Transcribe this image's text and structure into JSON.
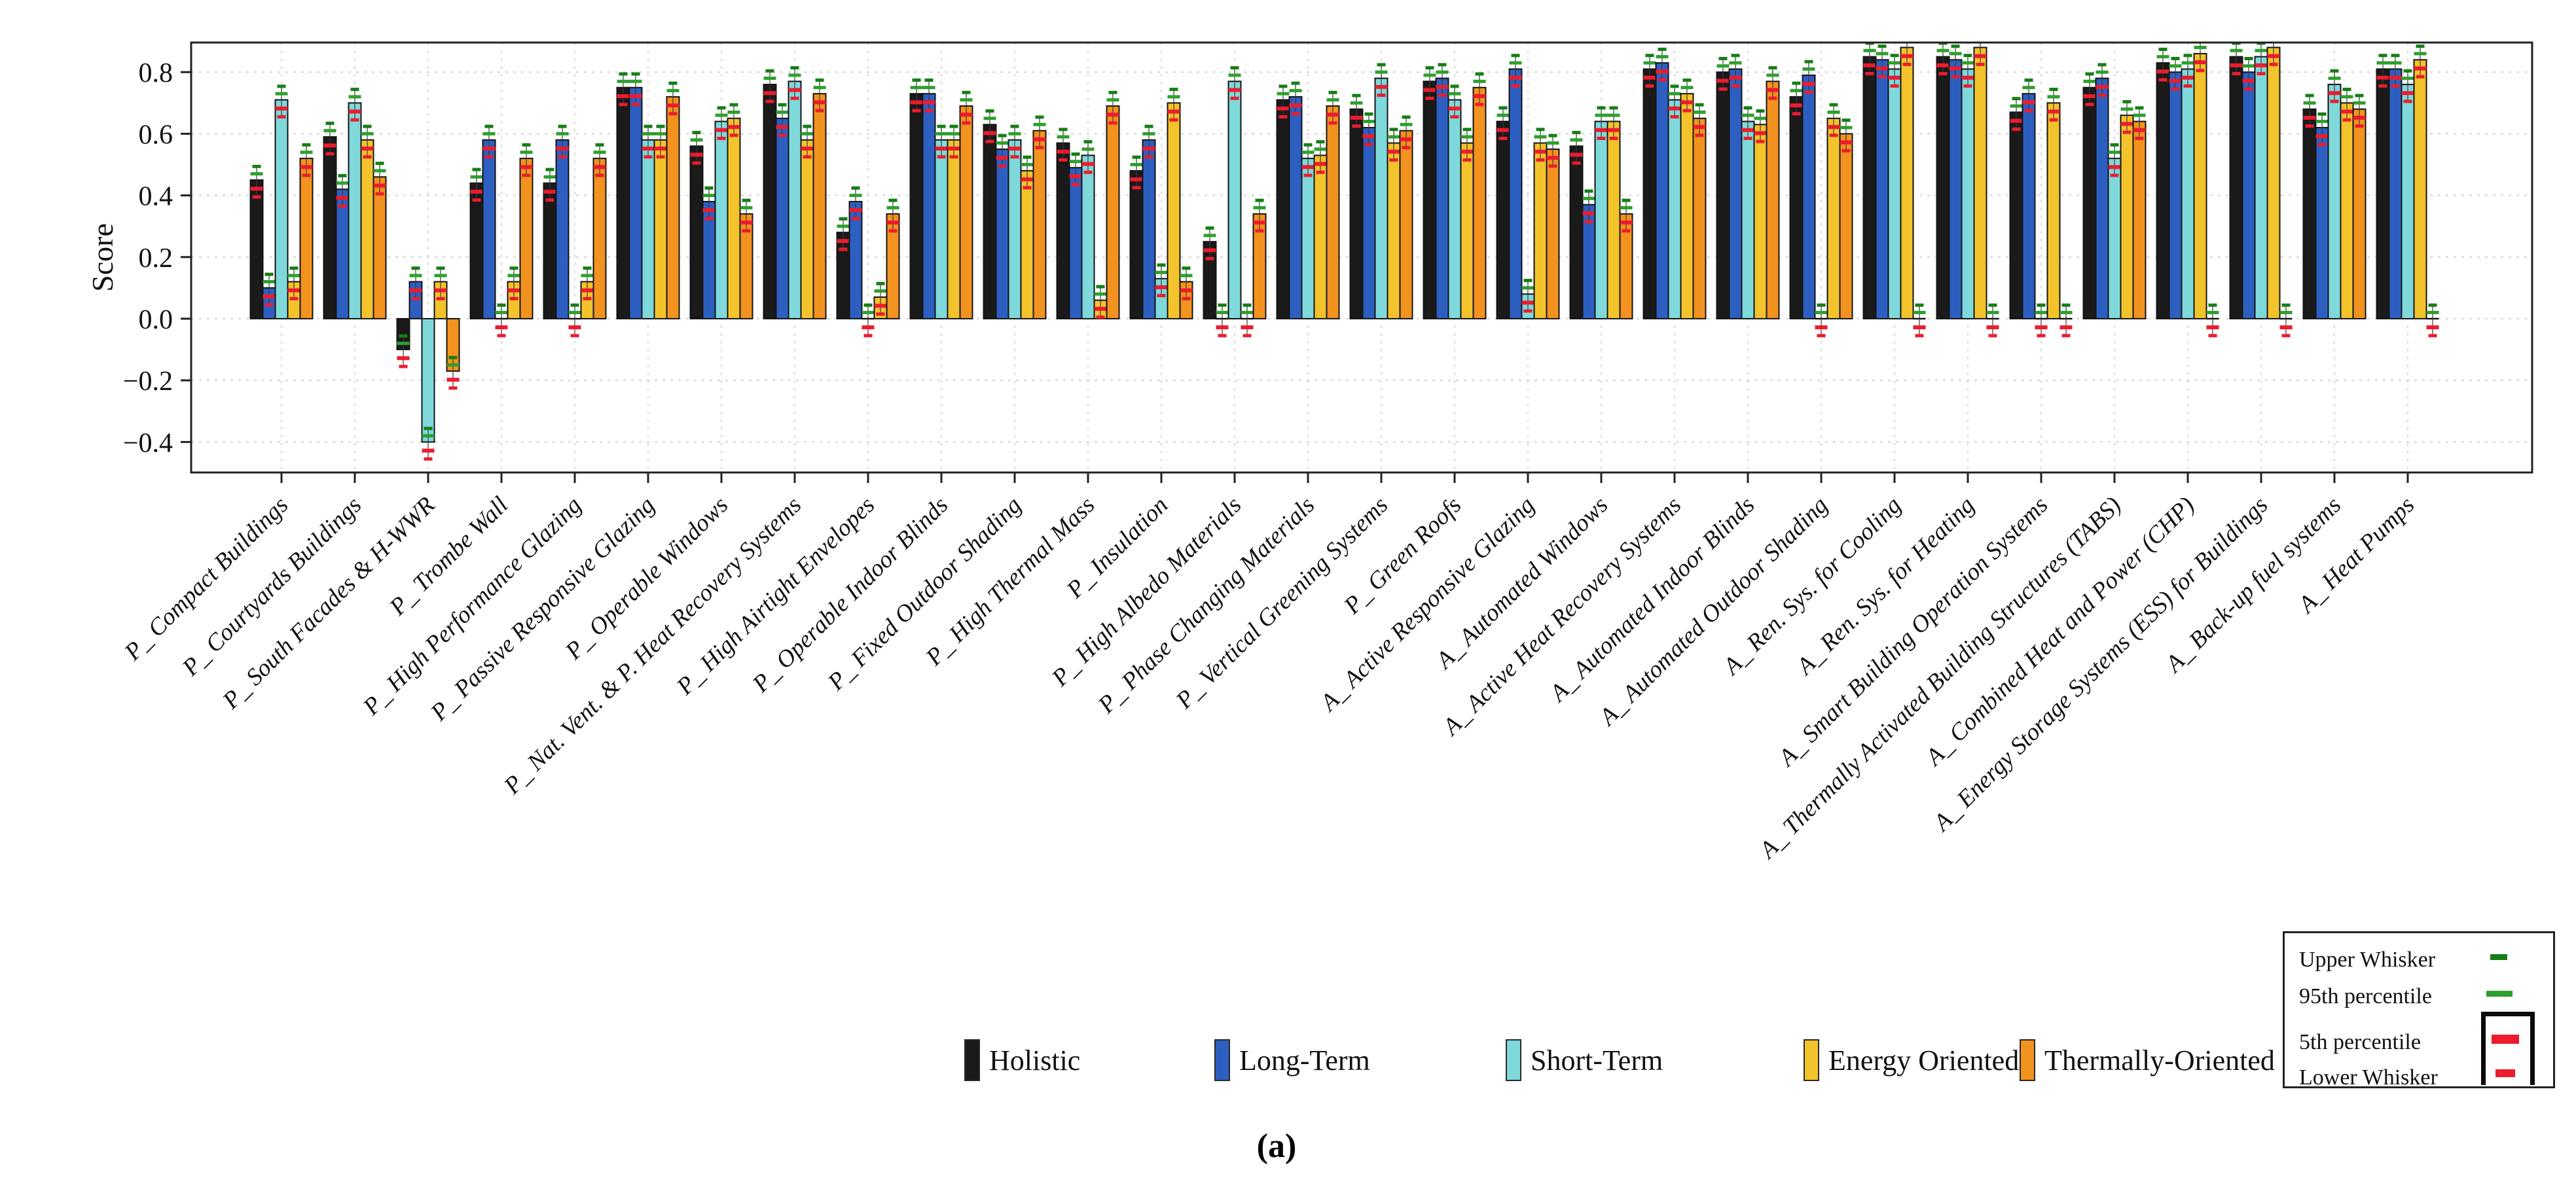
{
  "figure": {
    "caption": "(a)",
    "ylabel": "Score",
    "background": "#ffffff"
  },
  "chart_data": {
    "type": "bar",
    "title": "",
    "xlabel": "",
    "ylabel": "Score",
    "ylim": [
      -0.5,
      0.9
    ],
    "yticks": [
      -0.4,
      -0.2,
      0.0,
      0.2,
      0.4,
      0.6,
      0.8
    ],
    "ytick_labels": [
      "−0.4",
      "−0.2",
      "0.0",
      "0.2",
      "0.4",
      "0.6",
      "0.8"
    ],
    "grid": "dashed",
    "legend_position": "bottom",
    "categories": [
      "P_ Compact Buildings",
      "P_ Courtyards Buildings",
      "P_ South Facades & H-WWR",
      "P_ Trombe Wall",
      "P_ High Performance Glazing",
      "P_ Passive Responsive Glazing",
      "P_ Operable Windows",
      "P_ Nat. Vent. & P. Heat Recovery Systems",
      "P_ High Airtight Envelopes",
      "P_ Operable Indoor Blinds",
      "P_ Fixed Outdoor Shading",
      "P_ High Thermal Mass",
      "P_ Insulation",
      "P_ High Albedo Materials",
      "P_ Phase Changing Materials",
      "P_ Vertical Greening Systems",
      "P_ Green Roofs",
      "A_ Active Responsive Glazing",
      "A_ Automated Windows",
      "A_ Active Heat Recovery Systems",
      "A_ Automated Indoor Blinds",
      "A_ Automated Outdoor Shading",
      "A_ Ren. Sys. for Cooling",
      "A_ Ren. Sys. for Heating",
      "A_ Smart Building Operation Systems",
      "A_ Thermally Activated Building Structures (TABS)",
      "A_ Combined Heat and Power (CHP)",
      "A_ Energy Storage Systems (ESS) for Buildings",
      "A_ Back-up fuel systems",
      "A_ Heat Pumps"
    ],
    "series": [
      {
        "name": "Holistic",
        "color": "#1a1a1a",
        "values": [
          0.45,
          0.59,
          -0.1,
          0.44,
          0.44,
          0.75,
          0.56,
          0.76,
          0.28,
          0.73,
          0.63,
          0.57,
          0.48,
          0.25,
          0.71,
          0.68,
          0.77,
          0.64,
          0.56,
          0.81,
          0.8,
          0.72,
          0.85,
          0.85,
          0.67,
          0.75,
          0.83,
          0.85,
          0.68,
          0.81
        ]
      },
      {
        "name": "Long-Term",
        "color": "#2d5fc1",
        "values": [
          0.1,
          0.42,
          0.12,
          0.58,
          0.58,
          0.75,
          0.38,
          0.65,
          0.38,
          0.73,
          0.55,
          0.49,
          0.58,
          0.0,
          0.72,
          0.62,
          0.78,
          0.81,
          0.37,
          0.83,
          0.81,
          0.79,
          0.84,
          0.84,
          0.73,
          0.78,
          0.8,
          0.8,
          0.62,
          0.81
        ]
      },
      {
        "name": "Short-Term",
        "color": "#7fd9db",
        "values": [
          0.71,
          0.7,
          -0.4,
          0.0,
          0.0,
          0.58,
          0.64,
          0.77,
          0.0,
          0.58,
          0.58,
          0.53,
          0.13,
          0.77,
          0.52,
          0.78,
          0.71,
          0.08,
          0.64,
          0.71,
          0.64,
          0.0,
          0.81,
          0.81,
          0.0,
          0.52,
          0.81,
          0.85,
          0.76,
          0.76
        ]
      },
      {
        "name": "Energy Oriented",
        "color": "#f3c32c",
        "values": [
          0.12,
          0.58,
          0.12,
          0.12,
          0.12,
          0.58,
          0.65,
          0.58,
          0.07,
          0.58,
          0.48,
          0.06,
          0.7,
          0.0,
          0.53,
          0.57,
          0.57,
          0.57,
          0.64,
          0.73,
          0.63,
          0.65,
          0.88,
          0.88,
          0.7,
          0.66,
          0.86,
          0.88,
          0.7,
          0.84
        ]
      },
      {
        "name": "Thermally-Oriented",
        "color": "#f2921f",
        "values": [
          0.52,
          0.46,
          -0.17,
          0.52,
          0.52,
          0.72,
          0.34,
          0.73,
          0.34,
          0.69,
          0.61,
          0.69,
          0.12,
          0.34,
          0.69,
          0.61,
          0.75,
          0.55,
          0.34,
          0.65,
          0.77,
          0.6,
          0.0,
          0.0,
          0.0,
          0.64,
          0.0,
          0.0,
          0.68,
          0.0
        ]
      }
    ],
    "whisker_legend": [
      {
        "label": "Upper Whisker",
        "color": "#157f15",
        "dash_w": 26,
        "dash_h": 9
      },
      {
        "label": "95th percentile",
        "color": "#2da02d",
        "dash_w": 40,
        "dash_h": 9
      },
      {
        "label": "5th percentile",
        "color": "#ec1c2e",
        "dash_w": 42,
        "dash_h": 14
      },
      {
        "label": "Lower Whisker",
        "color": "#ec1c2e",
        "dash_w": 30,
        "dash_h": 12
      }
    ],
    "whisker_offsets": {
      "upper": 0.044,
      "p95": 0.02,
      "p5": -0.028,
      "lower": -0.055
    }
  }
}
